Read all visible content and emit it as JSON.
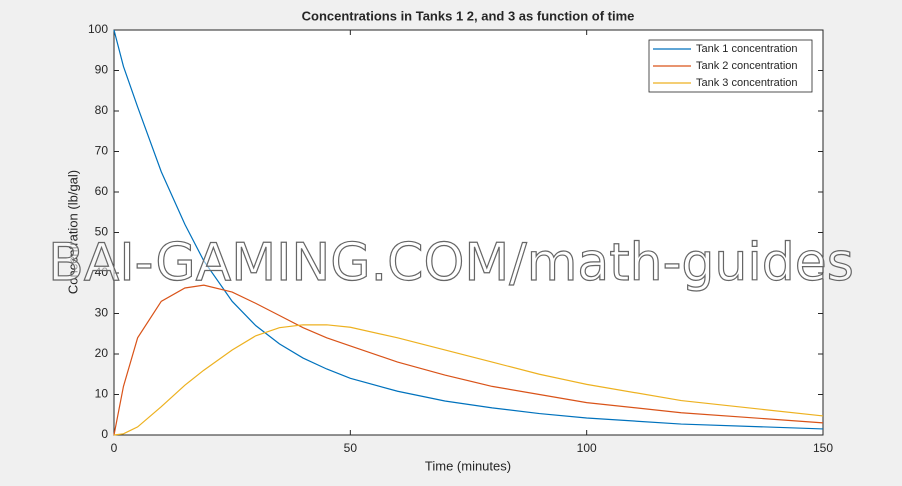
{
  "chart_data": {
    "type": "line",
    "title": "Concentrations in Tanks 1 2, and 3 as function of time",
    "x_label": "Time (minutes)",
    "y_label": "Concentration (lb/gal)",
    "watermark": "BAI-GAMING.COM/math-guides",
    "x": [
      0,
      2,
      5,
      10,
      15,
      19,
      25,
      30,
      35,
      40,
      45,
      50,
      60,
      70,
      80,
      90,
      100,
      120,
      150
    ],
    "series": [
      {
        "name": "Tank 1 concentration",
        "color": "#0072bd",
        "values": [
          100,
          91,
          81,
          65,
          52,
          43,
          33,
          27,
          22.5,
          19,
          16.3,
          14,
          10.8,
          8.4,
          6.7,
          5.3,
          4.2,
          2.7,
          1.5
        ]
      },
      {
        "name": "Tank 2 concentration",
        "color": "#d95319",
        "values": [
          0,
          12,
          24,
          33,
          36.3,
          37,
          35.3,
          32.5,
          29.5,
          26.5,
          24,
          22,
          18,
          14.8,
          12,
          10,
          8,
          5.5,
          3
        ]
      },
      {
        "name": "Tank 3 concentration",
        "color": "#edb120",
        "values": [
          0,
          0.3,
          2,
          7,
          12.3,
          16,
          21,
          24.5,
          26.5,
          27.2,
          27.2,
          26.6,
          24,
          21,
          18,
          15,
          12.5,
          8.5,
          4.7
        ]
      }
    ],
    "xlim": [
      0,
      150
    ],
    "xticks": [
      0,
      50,
      100,
      150
    ],
    "ylim": [
      0,
      100
    ],
    "yticks": [
      0,
      10,
      20,
      30,
      40,
      50,
      60,
      70,
      80,
      90,
      100
    ],
    "legend": "northeast"
  }
}
